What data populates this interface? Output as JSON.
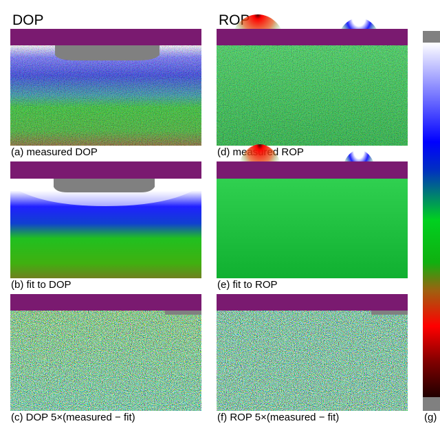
{
  "column_titles": [
    "DOP",
    "ROP"
  ],
  "panels": [
    {
      "caption": "(a) measured DOP"
    },
    {
      "caption": "(b) fit to DOP"
    },
    {
      "caption": "(c) DOP 5×(measured − fit)"
    },
    {
      "caption": "(d) measured ROP"
    },
    {
      "caption": "(e) fit to ROP"
    },
    {
      "caption": "(f) ROP 5×(measured − fit)"
    }
  ],
  "colorbar": {
    "caption": "(g)"
  }
}
